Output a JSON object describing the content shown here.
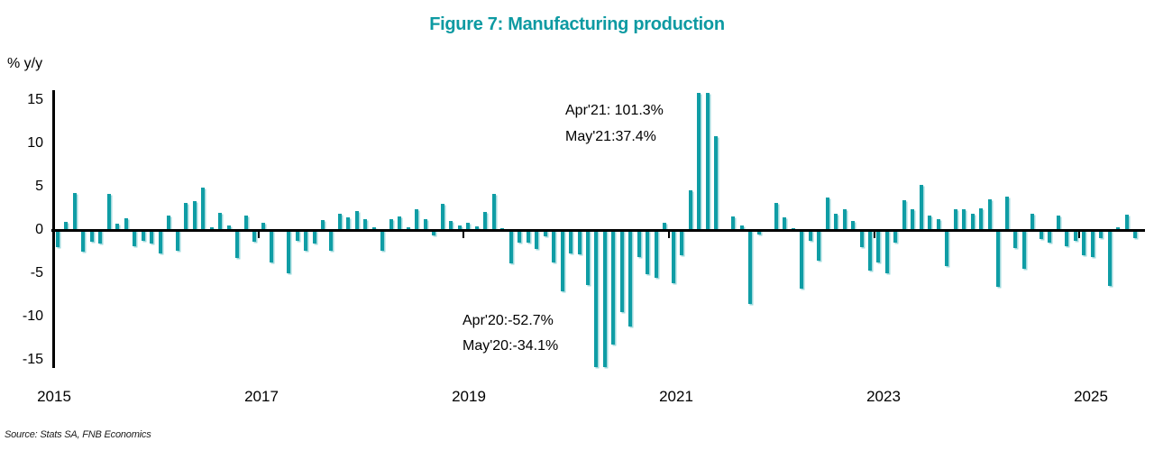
{
  "title": "Figure 7: Manufacturing production",
  "ylabel": "% y/y",
  "source": "Source: Stats SA, FNB Economics",
  "annotations": {
    "peak_line1": "Apr'21: 101.3%",
    "peak_line2": "May'21:37.4%",
    "trough_line1": "Apr'20:-52.7%",
    "trough_line2": "May'20:-34.1%"
  },
  "colors": {
    "accent": "#0f9da5",
    "bar_shadow": "#9ed9dc",
    "axis": "#000000",
    "title": "#0d9aa2"
  },
  "chart_data": {
    "type": "bar",
    "title": "Figure 7: Manufacturing production",
    "xlabel": "",
    "ylabel": "% y/y",
    "ylim": [
      -15,
      15
    ],
    "yticks": [
      15,
      10,
      5,
      0,
      -5,
      -10,
      -15
    ],
    "xtick_years": [
      "2015",
      "2017",
      "2019",
      "2021",
      "2023",
      "2025"
    ],
    "frequency": "monthly",
    "x_start": "Jan 2015",
    "x_end": "Jul 2025",
    "grid": false,
    "legend": "none",
    "series": [
      {
        "name": "Manufacturing production, % y/y",
        "values": [
          -2.0,
          0.9,
          4.3,
          -2.5,
          -1.4,
          -1.6,
          4.2,
          0.7,
          1.4,
          -1.9,
          -1.2,
          -1.6,
          -2.7,
          1.7,
          -2.4,
          3.1,
          3.3,
          4.9,
          0.3,
          2.0,
          0.5,
          -3.2,
          1.7,
          -1.4,
          0.8,
          -3.7,
          0.0,
          -5.0,
          -1.2,
          -2.4,
          -1.6,
          1.1,
          -2.4,
          1.9,
          1.5,
          2.2,
          1.3,
          0.3,
          -2.4,
          1.3,
          1.6,
          0.3,
          2.4,
          1.3,
          -0.6,
          3.0,
          1.0,
          0.5,
          0.8,
          0.4,
          2.1,
          4.2,
          0.2,
          -3.9,
          -1.5,
          -1.5,
          -2.2,
          -0.7,
          -3.8,
          -7.1,
          -2.7,
          -2.8,
          -6.4,
          -52.7,
          -34.1,
          -13.2,
          -9.5,
          -11.1,
          -3.1,
          -5.1,
          -5.5,
          0.8,
          -6.1,
          -2.9,
          4.6,
          101.3,
          37.4,
          10.8,
          0.0,
          1.6,
          0.5,
          -8.5,
          -0.5,
          0.0,
          3.1,
          1.5,
          0.2,
          -6.8,
          -1.3,
          -3.5,
          3.8,
          1.9,
          2.4,
          1.0,
          -2.0,
          -4.7,
          -3.7,
          -5.0,
          -1.5,
          3.4,
          2.4,
          5.2,
          1.7,
          1.2,
          -4.2,
          2.4,
          2.4,
          1.9,
          2.5,
          3.5,
          -6.6,
          3.9,
          -2.1,
          -4.5,
          1.9,
          -1.0,
          -1.5,
          1.7,
          -1.9,
          -1.2,
          -2.9,
          -3.1,
          -0.9,
          -6.5,
          0.3,
          1.8,
          -0.9
        ]
      }
    ],
    "clipped_points": [
      {
        "label": "Apr'20",
        "value": -52.7
      },
      {
        "label": "May'20",
        "value": -34.1
      },
      {
        "label": "Apr'21",
        "value": 101.3
      },
      {
        "label": "May'21",
        "value": 37.4
      }
    ]
  }
}
